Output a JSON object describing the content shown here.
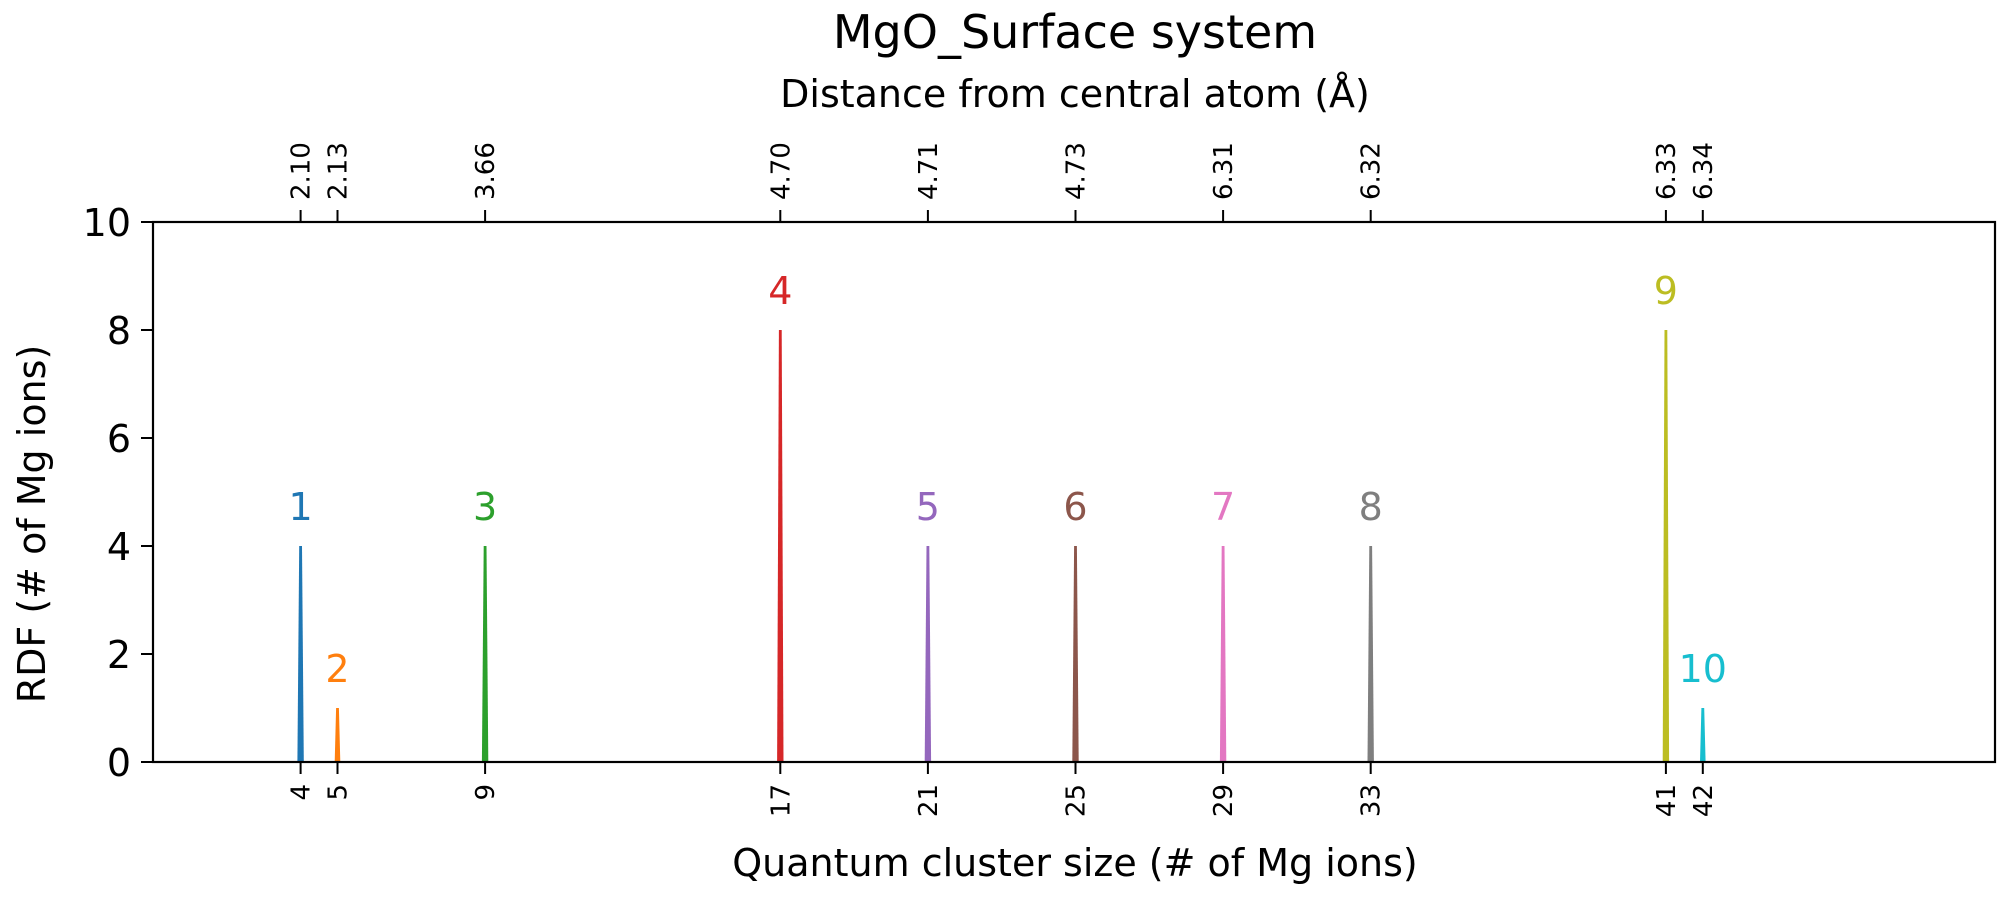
{
  "chart_data": {
    "type": "bar",
    "title": "MgO_Surface system",
    "top_axis_label": "Distance from central atom (Å)",
    "xlabel": "Quantum cluster size (# of Mg ions)",
    "ylabel": "RDF (# of Mg ions)",
    "ylim": [
      0,
      10
    ],
    "y_ticks": [
      "0",
      "2",
      "4",
      "6",
      "8",
      "10"
    ],
    "grid": false,
    "peaks": [
      {
        "label": "1",
        "cluster_size": "4",
        "distance": "2.10",
        "value": 4,
        "color": "#1f77b4"
      },
      {
        "label": "2",
        "cluster_size": "5",
        "distance": "2.13",
        "value": 1,
        "color": "#ff7f0e"
      },
      {
        "label": "3",
        "cluster_size": "9",
        "distance": "3.66",
        "value": 4,
        "color": "#2ca02c"
      },
      {
        "label": "4",
        "cluster_size": "17",
        "distance": "4.70",
        "value": 8,
        "color": "#d62728"
      },
      {
        "label": "5",
        "cluster_size": "21",
        "distance": "4.71",
        "value": 4,
        "color": "#9467bd"
      },
      {
        "label": "6",
        "cluster_size": "25",
        "distance": "4.73",
        "value": 4,
        "color": "#8c564b"
      },
      {
        "label": "7",
        "cluster_size": "29",
        "distance": "6.31",
        "value": 4,
        "color": "#e377c2"
      },
      {
        "label": "8",
        "cluster_size": "33",
        "distance": "6.32",
        "value": 4,
        "color": "#7f7f7f"
      },
      {
        "label": "9",
        "cluster_size": "41",
        "distance": "6.33",
        "value": 8,
        "color": "#bcbd22"
      },
      {
        "label": "10",
        "cluster_size": "42",
        "distance": "6.34",
        "value": 1,
        "color": "#17becf"
      }
    ]
  }
}
